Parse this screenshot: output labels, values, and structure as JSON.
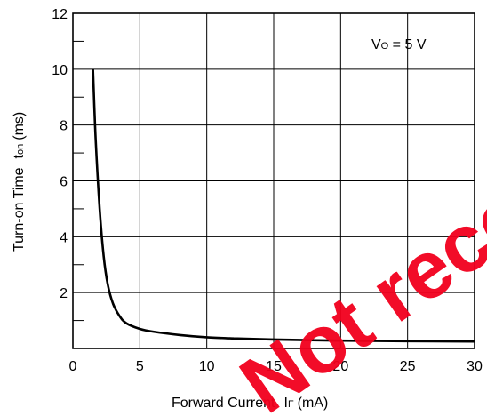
{
  "chart_data": {
    "type": "line",
    "xlabel": {
      "main": "Forward Current",
      "var": "I",
      "sub": "F",
      "unit": "(mA)"
    },
    "ylabel": {
      "main": "Turn-on Time",
      "var": "t",
      "sub": "on",
      "unit": "(ms)"
    },
    "annotation": {
      "var": "V",
      "sub": "O",
      "rest": " = 5 V"
    },
    "xlim": [
      0,
      30
    ],
    "ylim": [
      0,
      12
    ],
    "x_ticks": [
      0,
      5,
      10,
      15,
      20,
      25,
      30
    ],
    "y_ticks": [
      2,
      4,
      6,
      8,
      10,
      12
    ],
    "grid": true,
    "series": [
      {
        "x": [
          1.5,
          1.7,
          2.0,
          2.3,
          2.6,
          3.0,
          3.5,
          4.0,
          5.0,
          6.0,
          8.0,
          10.0,
          12.0,
          15.0,
          20.0,
          25.0,
          30.0
        ],
        "y": [
          10.0,
          7.5,
          5.0,
          3.3,
          2.3,
          1.6,
          1.15,
          0.9,
          0.7,
          0.6,
          0.48,
          0.4,
          0.36,
          0.32,
          0.28,
          0.26,
          0.25
        ]
      }
    ],
    "color": "#000000"
  },
  "watermark": {
    "text": "Not recommended",
    "color": "#f2001d"
  }
}
